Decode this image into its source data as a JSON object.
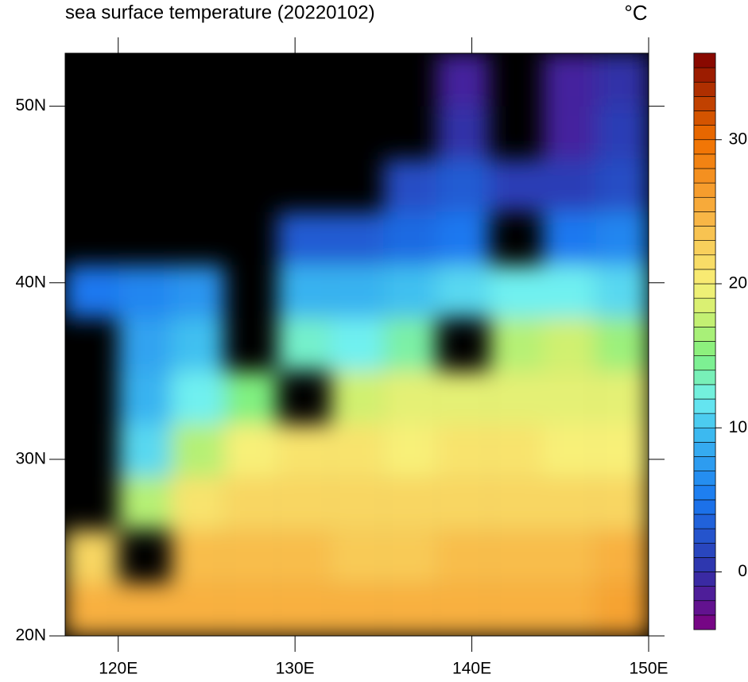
{
  "chart_data": {
    "type": "filled-map",
    "title": "sea surface temperature (20220102)",
    "unit": "°C",
    "xlim": [
      117,
      150
    ],
    "ylim": [
      20,
      53
    ],
    "xticks": [
      {
        "value": 120,
        "label": "120E"
      },
      {
        "value": 130,
        "label": "130E"
      },
      {
        "value": 140,
        "label": "140E"
      },
      {
        "value": 150,
        "label": "150E"
      }
    ],
    "yticks": [
      {
        "value": 20,
        "label": "20N"
      },
      {
        "value": 30,
        "label": "30N"
      },
      {
        "value": 40,
        "label": "40N"
      },
      {
        "value": 50,
        "label": "50N"
      }
    ],
    "land_color": "#000000",
    "lon": [
      118.5,
      121.5,
      124.5,
      127.5,
      130.5,
      133.5,
      136.5,
      139.5,
      142.5,
      145.5,
      148.5
    ],
    "lat": [
      51.5,
      48.5,
      45.5,
      42.5,
      39.5,
      36.5,
      33.5,
      30.5,
      27.5,
      24.5,
      21.5
    ],
    "values": [
      [
        null,
        null,
        null,
        null,
        null,
        null,
        null,
        -1,
        null,
        -1,
        0
      ],
      [
        null,
        null,
        null,
        null,
        null,
        null,
        null,
        0,
        null,
        -1,
        1
      ],
      [
        null,
        null,
        null,
        null,
        null,
        null,
        2,
        3,
        1,
        1,
        2
      ],
      [
        null,
        null,
        null,
        null,
        3,
        3,
        4,
        5,
        null,
        5,
        6
      ],
      [
        5,
        6,
        7,
        null,
        9,
        9,
        10,
        11,
        12,
        12,
        11
      ],
      [
        null,
        8,
        10,
        null,
        13,
        12,
        14,
        null,
        17,
        18,
        16
      ],
      [
        null,
        9,
        12,
        15,
        null,
        18,
        19,
        19,
        19,
        19,
        19
      ],
      [
        null,
        11,
        17,
        20,
        21,
        21,
        20,
        21,
        21,
        20,
        20
      ],
      [
        null,
        17,
        21,
        22,
        22,
        22,
        22,
        22,
        22,
        22,
        22
      ],
      [
        22,
        null,
        24,
        24,
        24,
        23,
        23,
        24,
        24,
        24,
        25
      ],
      [
        25,
        25,
        25,
        25,
        25,
        25,
        25,
        25,
        25,
        25,
        26
      ]
    ],
    "colorbar": {
      "clim": [
        -4,
        36
      ],
      "levels": 40,
      "ticks": [
        0,
        10,
        20,
        30
      ],
      "colormap": [
        {
          "value": -4,
          "color": "#800080"
        },
        {
          "value": 0,
          "color": "#3030a8"
        },
        {
          "value": 5,
          "color": "#1a78f0"
        },
        {
          "value": 10,
          "color": "#40c0f0"
        },
        {
          "value": 12,
          "color": "#70f0f0"
        },
        {
          "value": 15,
          "color": "#80f080"
        },
        {
          "value": 18,
          "color": "#d0f070"
        },
        {
          "value": 20,
          "color": "#f8f078"
        },
        {
          "value": 25,
          "color": "#f8b040"
        },
        {
          "value": 30,
          "color": "#f07000"
        },
        {
          "value": 36,
          "color": "#800000"
        }
      ]
    }
  }
}
